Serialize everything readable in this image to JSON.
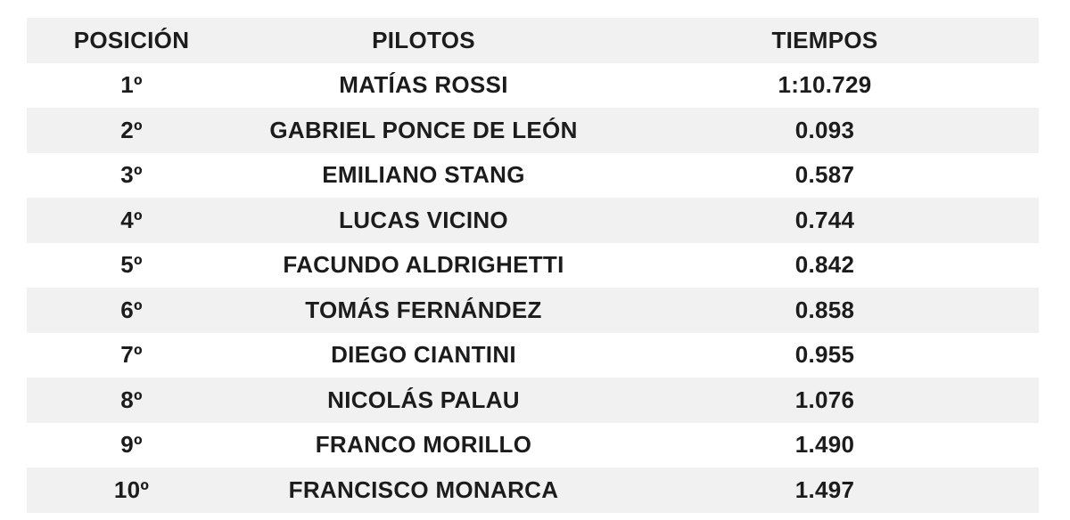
{
  "table": {
    "headers": [
      "POSICIÓN",
      "PILOTOS",
      "TIEMPOS"
    ],
    "rows": [
      [
        "1º",
        "MATÍAS ROSSI",
        "1:10.729"
      ],
      [
        "2º",
        "GABRIEL PONCE DE LEÓN",
        "0.093"
      ],
      [
        "3º",
        "EMILIANO STANG",
        "0.587"
      ],
      [
        "4º",
        "LUCAS VICINO",
        "0.744"
      ],
      [
        "5º",
        "FACUNDO ALDRIGHETTI",
        "0.842"
      ],
      [
        "6º",
        "TOMÁS FERNÁNDEZ",
        "0.858"
      ],
      [
        "7º",
        "DIEGO CIANTINI",
        "0.955"
      ],
      [
        "8º",
        "NICOLÁS PALAU",
        "1.076"
      ],
      [
        "9º",
        "FRANCO MORILLO",
        "1.490"
      ],
      [
        "10º",
        "FRANCISCO MONARCA",
        "1.497"
      ]
    ]
  }
}
